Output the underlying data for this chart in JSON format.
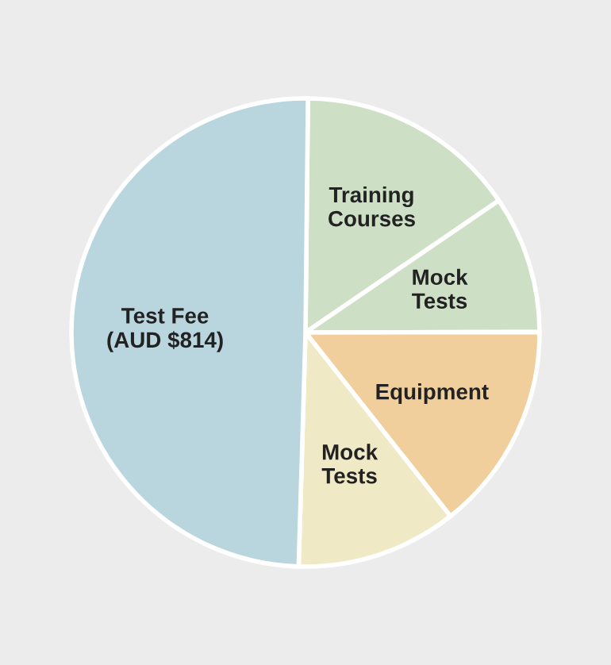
{
  "chart_data": {
    "type": "pie",
    "categories": [
      "Training\nCourses",
      "Mock\nTests",
      "Equipment",
      "Mock\nTests",
      "Test Fee\n(AUD $814)"
    ],
    "values": [
      15.3,
      9.5,
      14.4,
      11.1,
      49.7
    ],
    "colors": [
      "#cde0c6",
      "#cde0c6",
      "#f0cf9c",
      "#efe9c6",
      "#b9d5de"
    ],
    "legend": false
  }
}
